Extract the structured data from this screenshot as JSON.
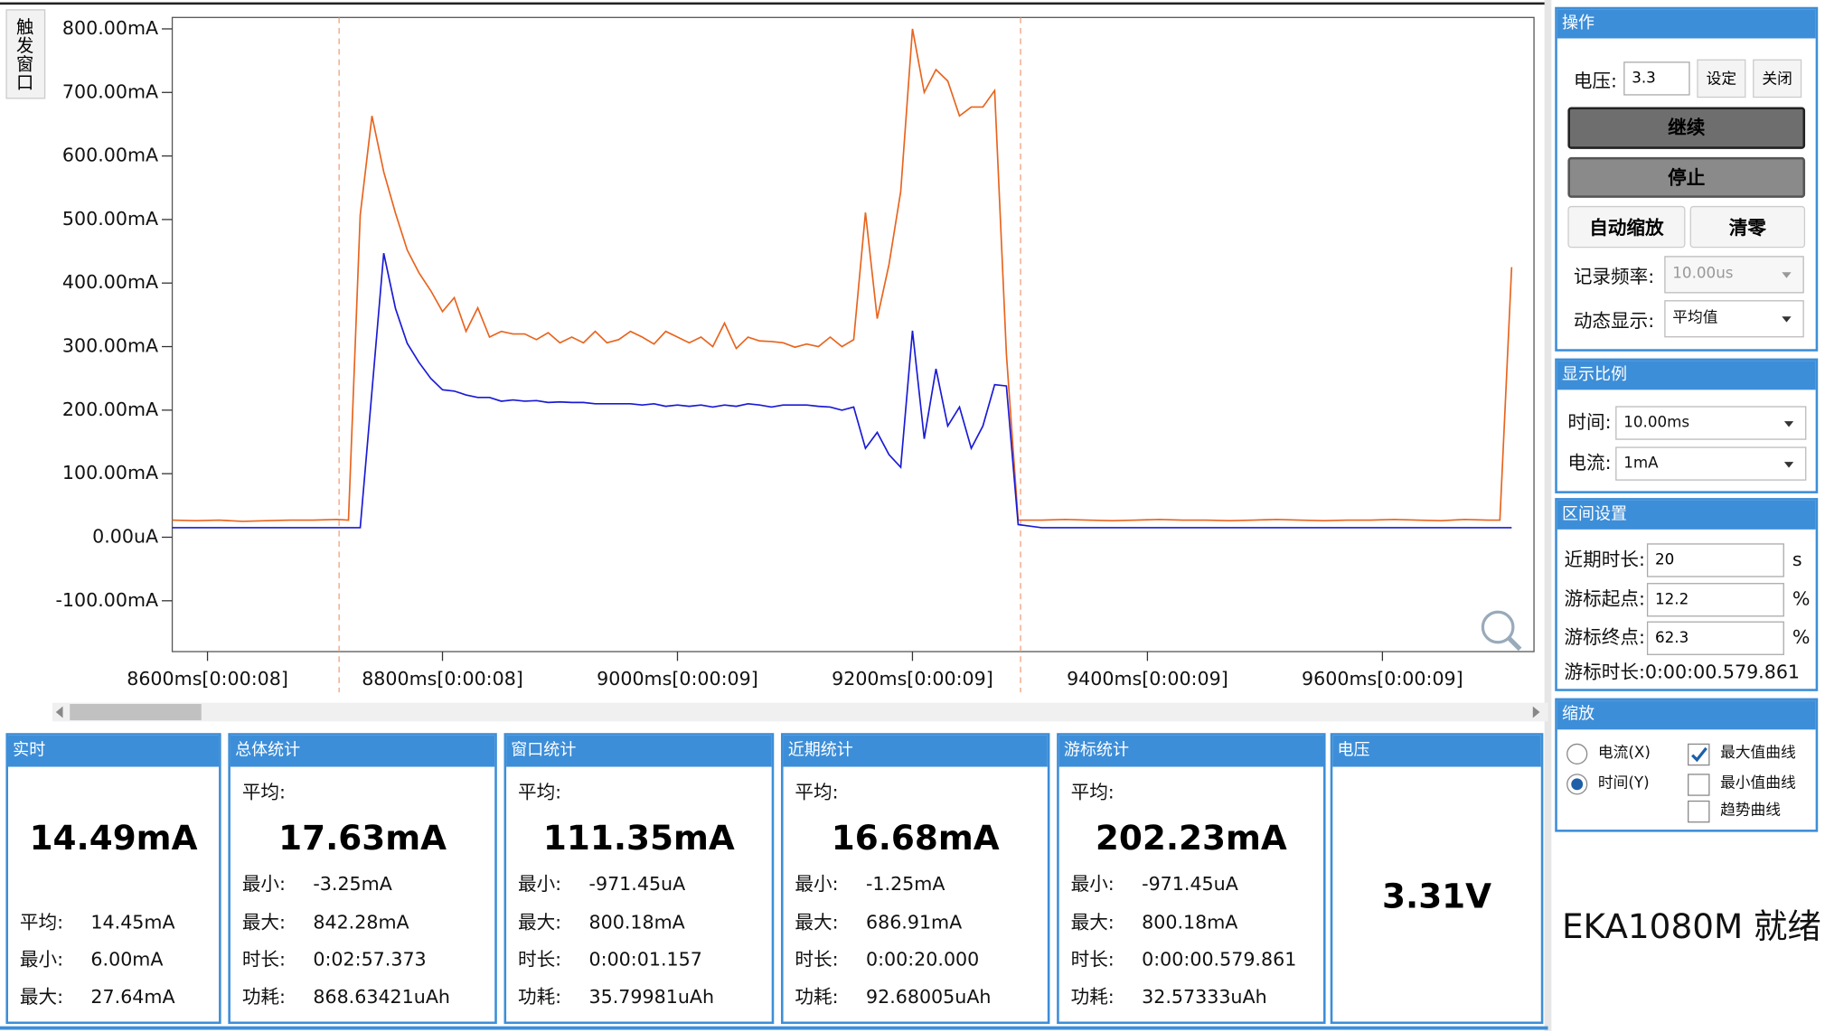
{
  "trigger_tab": "触发窗口",
  "chart_data": {
    "type": "line",
    "xlim": [
      8570,
      9729
    ],
    "ylim": [
      -180,
      818
    ],
    "xticks": [
      {
        "value": 8600,
        "label": "8600ms[0:00:08]"
      },
      {
        "value": 8800,
        "label": "8800ms[0:00:08]"
      },
      {
        "value": 9000,
        "label": "9000ms[0:00:09]"
      },
      {
        "value": 9200,
        "label": "9200ms[0:00:09]"
      },
      {
        "value": 9400,
        "label": "9400ms[0:00:09]"
      },
      {
        "value": 9600,
        "label": "9600ms[0:00:09]"
      }
    ],
    "yticks": [
      {
        "value": 800,
        "label": "800.00mA"
      },
      {
        "value": 700,
        "label": "700.00mA"
      },
      {
        "value": 600,
        "label": "600.00mA"
      },
      {
        "value": 500,
        "label": "500.00mA"
      },
      {
        "value": 400,
        "label": "400.00mA"
      },
      {
        "value": 300,
        "label": "300.00mA"
      },
      {
        "value": 200,
        "label": "200.00mA"
      },
      {
        "value": 100,
        "label": "100.00mA"
      },
      {
        "value": 0,
        "label": "0.00uA"
      },
      {
        "value": -100,
        "label": "-100.00mA"
      }
    ],
    "cursors": [
      8712,
      9292
    ],
    "cursor_color": "#f0a07a",
    "x": [
      8570,
      8590,
      8610,
      8630,
      8650,
      8670,
      8690,
      8710,
      8720,
      8730,
      8740,
      8750,
      8760,
      8770,
      8780,
      8790,
      8800,
      8810,
      8820,
      8830,
      8840,
      8850,
      8860,
      8870,
      8880,
      8890,
      8900,
      8910,
      8920,
      8930,
      8940,
      8950,
      8960,
      8970,
      8980,
      8990,
      9000,
      9010,
      9020,
      9030,
      9040,
      9050,
      9060,
      9070,
      9080,
      9090,
      9100,
      9110,
      9120,
      9130,
      9140,
      9150,
      9160,
      9170,
      9180,
      9190,
      9200,
      9210,
      9220,
      9230,
      9240,
      9250,
      9260,
      9270,
      9280,
      9290,
      9310,
      9330,
      9350,
      9370,
      9390,
      9410,
      9430,
      9450,
      9470,
      9490,
      9510,
      9530,
      9550,
      9570,
      9590,
      9610,
      9630,
      9650,
      9670,
      9690,
      9700,
      9710
    ],
    "series": [
      {
        "color": "#e8641e",
        "values": [
          27,
          26,
          27,
          25,
          26,
          27,
          27,
          28,
          27,
          507,
          663,
          575,
          510,
          452,
          416,
          388,
          355,
          377,
          324,
          361,
          315,
          324,
          320,
          320,
          311,
          322,
          306,
          315,
          306,
          324,
          306,
          311,
          324,
          315,
          304,
          324,
          315,
          306,
          315,
          300,
          337,
          297,
          315,
          309,
          308,
          306,
          299,
          304,
          300,
          315,
          300,
          311,
          511,
          344,
          429,
          544,
          800,
          700,
          736,
          718,
          663,
          677,
          677,
          703,
          288,
          27,
          27,
          28,
          27,
          26,
          27,
          28,
          27,
          27,
          26,
          27,
          28,
          27,
          26,
          27,
          27,
          28,
          27,
          26,
          28,
          27,
          27,
          425
        ]
      },
      {
        "color": "#1a1ad6",
        "values": [
          15,
          15,
          15,
          15,
          15,
          15,
          15,
          15,
          15,
          15,
          230,
          447,
          360,
          305,
          275,
          250,
          232,
          230,
          224,
          220,
          220,
          214,
          216,
          214,
          215,
          212,
          213,
          212,
          212,
          210,
          210,
          210,
          210,
          208,
          210,
          206,
          208,
          206,
          208,
          205,
          208,
          206,
          210,
          208,
          205,
          208,
          208,
          208,
          206,
          205,
          200,
          205,
          140,
          165,
          130,
          110,
          325,
          155,
          265,
          175,
          205,
          140,
          175,
          240,
          238,
          20,
          15,
          15,
          15,
          15,
          15,
          15,
          15,
          15,
          15,
          15,
          15,
          15,
          15,
          15,
          15,
          15,
          15,
          15,
          15,
          15,
          15,
          15
        ]
      }
    ]
  },
  "controls": {
    "title": "操作",
    "voltage_label": "电压:",
    "voltage_value": "3.3",
    "set_button": "设定",
    "close_button": "关闭",
    "continue_button": "继续",
    "stop_button": "停止",
    "autoscale_button": "自动缩放",
    "zero_button": "清零",
    "rate_label": "记录频率:",
    "rate_value": "10.00us",
    "display_label": "动态显示:",
    "display_value": "平均值"
  },
  "scale": {
    "title": "显示比例",
    "time_label": "时间:",
    "time_value": "10.00ms",
    "current_label": "电流:",
    "current_value": "1mA"
  },
  "range": {
    "title": "区间设置",
    "rows": [
      {
        "label": "近期时长:",
        "value": "20",
        "unit": "s"
      },
      {
        "label": "游标起点:",
        "value": "12.2",
        "unit": "%"
      },
      {
        "label": "游标终点:",
        "value": "62.3",
        "unit": "%"
      }
    ],
    "cursor_duration": "游标时长:0:00:00.579.861"
  },
  "zoom": {
    "title": "缩放",
    "radios": [
      {
        "label": "电流(X)",
        "checked": false
      },
      {
        "label": "时间(Y)",
        "checked": true
      }
    ],
    "checkboxes": [
      {
        "label": "最大值曲线",
        "checked": true
      },
      {
        "label": "最小值曲线",
        "checked": false
      },
      {
        "label": "趋势曲线",
        "checked": false
      }
    ]
  },
  "status": "EKA1080M 就绪",
  "stats": [
    {
      "title": "实时",
      "main": "14.49mA",
      "rows": [
        {
          "label": "平均:",
          "value": "14.45mA"
        },
        {
          "label": "最小:",
          "value": "6.00mA"
        },
        {
          "label": "最大:",
          "value": "27.64mA"
        }
      ]
    },
    {
      "title": "总体统计",
      "avg_label": "平均:",
      "main": "17.63mA",
      "rows": [
        {
          "label": "最小:",
          "value": "-3.25mA"
        },
        {
          "label": "最大:",
          "value": "842.28mA"
        },
        {
          "label": "时长:",
          "value": "0:02:57.373"
        },
        {
          "label": "功耗:",
          "value": "868.63421uAh"
        }
      ]
    },
    {
      "title": "窗口统计",
      "avg_label": "平均:",
      "main": "111.35mA",
      "rows": [
        {
          "label": "最小:",
          "value": "-971.45uA"
        },
        {
          "label": "最大:",
          "value": "800.18mA"
        },
        {
          "label": "时长:",
          "value": "0:00:01.157"
        },
        {
          "label": "功耗:",
          "value": "35.79981uAh"
        }
      ]
    },
    {
      "title": "近期统计",
      "avg_label": "平均:",
      "main": "16.68mA",
      "rows": [
        {
          "label": "最小:",
          "value": "-1.25mA"
        },
        {
          "label": "最大:",
          "value": "686.91mA"
        },
        {
          "label": "时长:",
          "value": "0:00:20.000"
        },
        {
          "label": "功耗:",
          "value": "92.68005uAh"
        }
      ]
    },
    {
      "title": "游标统计",
      "avg_label": "平均:",
      "main": "202.23mA",
      "rows": [
        {
          "label": "最小:",
          "value": "-971.45uA"
        },
        {
          "label": "最大:",
          "value": "800.18mA"
        },
        {
          "label": "时长:",
          "value": "0:00:00.579.861"
        },
        {
          "label": "功耗:",
          "value": "32.57333uAh"
        }
      ]
    }
  ],
  "voltage_panel": {
    "title": "电压",
    "value": "3.31V"
  }
}
